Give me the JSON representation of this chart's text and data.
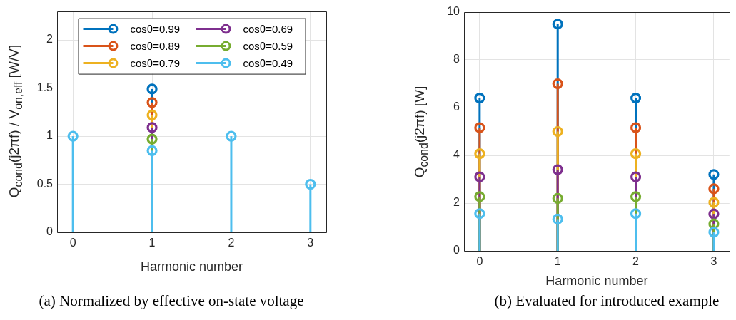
{
  "chart_data": [
    {
      "type": "lollipop",
      "xlabel": "Harmonic number",
      "ylabel": "Q$_{cond}$(j2πf) / V$_{on,eff}$  [W/V]",
      "x": [
        0,
        1,
        2,
        3
      ],
      "xlim": [
        -0.2,
        3.2
      ],
      "xticks": [
        0,
        1,
        2,
        3
      ],
      "ylim": [
        0,
        2.3
      ],
      "yticks": [
        0,
        0.5,
        1,
        1.5,
        2
      ],
      "grid": true,
      "marker": "circle",
      "legend": "top",
      "annotations": [
        "(a) Normalized by effective on-state voltage"
      ],
      "series": [
        {
          "name": "cosθ=0.99",
          "color": "#0072bd",
          "values": [
            null,
            1.49,
            null,
            null
          ]
        },
        {
          "name": "cosθ=0.89",
          "color": "#d95319",
          "values": [
            null,
            1.35,
            null,
            null
          ]
        },
        {
          "name": "cosθ=0.79",
          "color": "#edb120",
          "values": [
            null,
            1.22,
            null,
            null
          ]
        },
        {
          "name": "cosθ=0.69",
          "color": "#7e2f8e",
          "values": [
            null,
            1.09,
            null,
            null
          ]
        },
        {
          "name": "cosθ=0.59",
          "color": "#77ac30",
          "values": [
            null,
            0.97,
            null,
            null
          ]
        },
        {
          "name": "cosθ=0.49",
          "color": "#4dbeee",
          "values": [
            1,
            0.85,
            1,
            0.5
          ]
        }
      ]
    },
    {
      "type": "lollipop",
      "xlabel": "Harmonic number",
      "ylabel": "Q$_{cond}$(j2πf) [W]",
      "x": [
        0,
        1,
        2,
        3
      ],
      "xlim": [
        -0.2,
        3.2
      ],
      "xticks": [
        0,
        1,
        2,
        3
      ],
      "ylim": [
        0,
        10
      ],
      "yticks": [
        0,
        2,
        4,
        6,
        8,
        10
      ],
      "grid": true,
      "marker": "circle",
      "annotations": [
        "(b) Evaluated for introduced example"
      ],
      "series": [
        {
          "color": "#0072bd",
          "values": [
            6.4,
            9.5,
            6.4,
            3.2
          ]
        },
        {
          "color": "#d95319",
          "values": [
            5.16,
            7.0,
            5.16,
            2.6
          ]
        },
        {
          "color": "#edb120",
          "values": [
            4.07,
            5.0,
            4.07,
            2.03
          ]
        },
        {
          "color": "#7e2f8e",
          "values": [
            3.1,
            3.4,
            3.1,
            1.55
          ]
        },
        {
          "color": "#77ac30",
          "values": [
            2.27,
            2.2,
            2.27,
            1.13
          ]
        },
        {
          "color": "#4dbeee",
          "values": [
            1.56,
            1.33,
            1.56,
            0.78
          ]
        }
      ]
    }
  ]
}
